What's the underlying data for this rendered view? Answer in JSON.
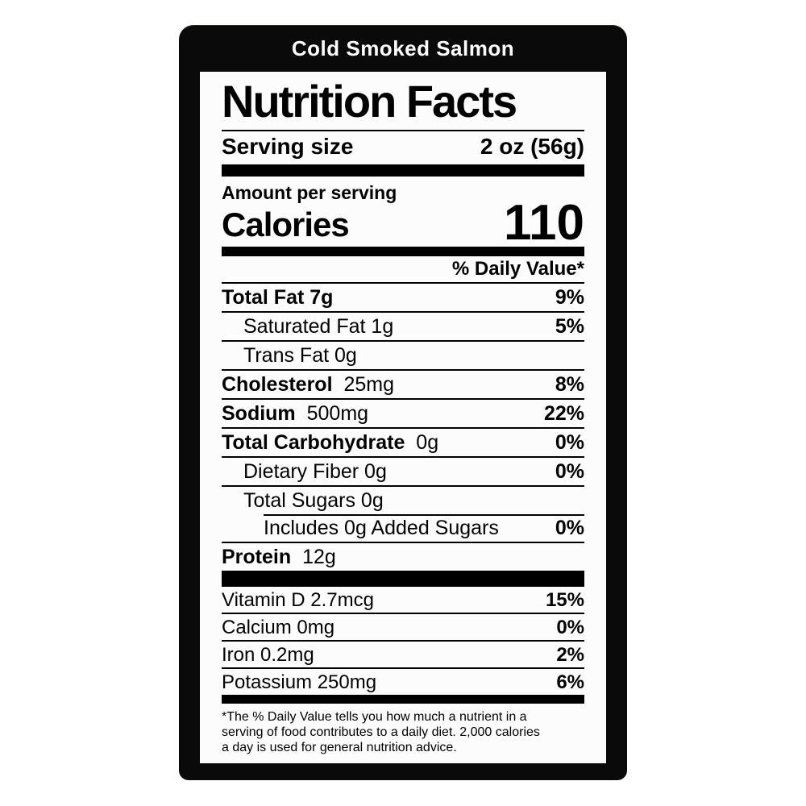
{
  "colors": {
    "page_background": "#ffffff",
    "label_background": "#0a0a0a",
    "panel_background": "#fcfcfc",
    "text": "#000000",
    "title_text": "#ffffff"
  },
  "label": {
    "product_title": "Cold Smoked Salmon"
  },
  "panel": {
    "title": "Nutrition Facts",
    "serving_size_label": "Serving size",
    "serving_size_value": "2 oz (56g)",
    "amount_per_serving_label": "Amount per serving",
    "calories_label": "Calories",
    "calories_value": "110",
    "daily_value_header": "% Daily Value*",
    "nutrient_rows": [
      {
        "bold": "Total Fat 7g",
        "rest": "",
        "percent": "9%",
        "indent": 0
      },
      {
        "bold": "",
        "rest": "Saturated Fat 1g",
        "percent": "5%",
        "indent": 1
      },
      {
        "bold": "",
        "rest": "Trans Fat 0g",
        "percent": "",
        "indent": 1
      },
      {
        "bold": "Cholesterol",
        "rest": "25mg",
        "percent": "8%",
        "indent": 0
      },
      {
        "bold": "Sodium",
        "rest": "500mg",
        "percent": "22%",
        "indent": 0
      },
      {
        "bold": "Total Carbohydrate",
        "rest": "0g",
        "percent": "0%",
        "indent": 0
      },
      {
        "bold": "",
        "rest": "Dietary Fiber 0g",
        "percent": "0%",
        "indent": 1
      },
      {
        "bold": "",
        "rest": "Total Sugars 0g",
        "percent": "",
        "indent": 1
      },
      {
        "bold": "",
        "rest": "Includes 0g Added Sugars",
        "percent": "0%",
        "indent": 2,
        "rule_indent": true
      },
      {
        "bold": "Protein",
        "rest": "12g",
        "percent": "",
        "indent": 0
      }
    ],
    "vitamin_rows": [
      {
        "bold": "",
        "rest": "Vitamin D 2.7mcg",
        "percent": "15%",
        "indent": 0
      },
      {
        "bold": "",
        "rest": "Calcium 0mg",
        "percent": "0%",
        "indent": 0
      },
      {
        "bold": "",
        "rest": "Iron 0.2mg",
        "percent": "2%",
        "indent": 0
      },
      {
        "bold": "",
        "rest": "Potassium 250mg",
        "percent": "6%",
        "indent": 0
      }
    ],
    "footnote_lines": [
      "*The % Daily Value tells you how much a nutrient in a",
      "serving of food contributes to a daily diet. 2,000 calories",
      "a day is used for general nutrition advice."
    ]
  }
}
